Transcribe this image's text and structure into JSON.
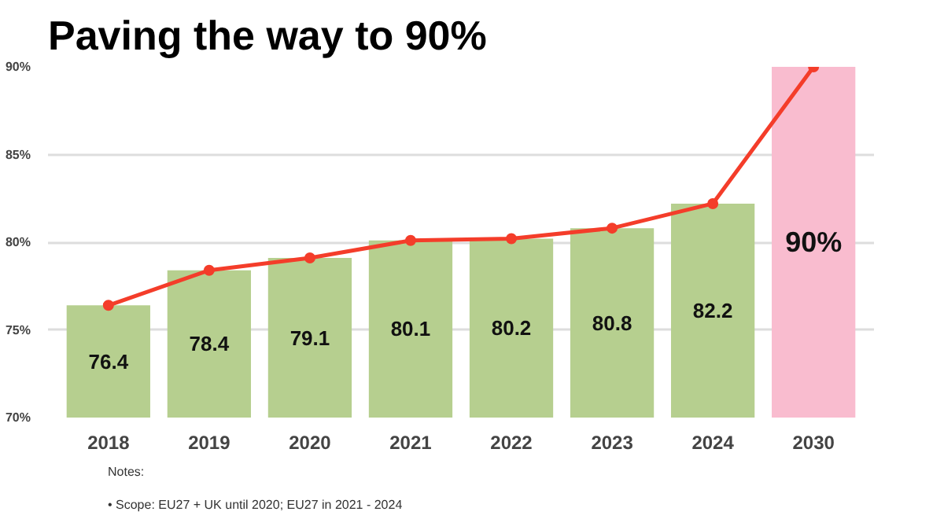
{
  "chart_data": {
    "type": "bar",
    "title": "Paving the way to 90%",
    "categories": [
      "2018",
      "2019",
      "2020",
      "2021",
      "2022",
      "2023",
      "2024",
      "2030"
    ],
    "series": [
      {
        "colors": [
          "#b6cf8f",
          "#b6cf8f",
          "#b6cf8f",
          "#b6cf8f",
          "#b6cf8f",
          "#b6cf8f",
          "#b6cf8f",
          "#f9bccf"
        ],
        "values": [
          76.4,
          78.4,
          79.1,
          80.1,
          80.2,
          80.8,
          82.2,
          90
        ],
        "value_labels": [
          "76.4",
          "78.4",
          "79.1",
          "80.1",
          "80.2",
          "80.8",
          "82.2",
          "90%"
        ]
      },
      {
        "type": "line",
        "color": "#f43d2a",
        "values": [
          76.4,
          78.4,
          79.1,
          80.1,
          80.2,
          80.8,
          82.2,
          90
        ]
      }
    ],
    "ylim": [
      70,
      90
    ],
    "yticks": [
      {
        "value": 70,
        "label": "70%"
      },
      {
        "value": 75,
        "label": "75%"
      },
      {
        "value": 80,
        "label": "80%"
      },
      {
        "value": 85,
        "label": "85%"
      },
      {
        "value": 90,
        "label": "90%"
      }
    ],
    "grid": "y",
    "marker": "circle",
    "line_style": "solid",
    "annotations": [
      "Notes:",
      "• Scope: EU27 + UK until 2020; EU27 in 2021 - 2024"
    ]
  }
}
